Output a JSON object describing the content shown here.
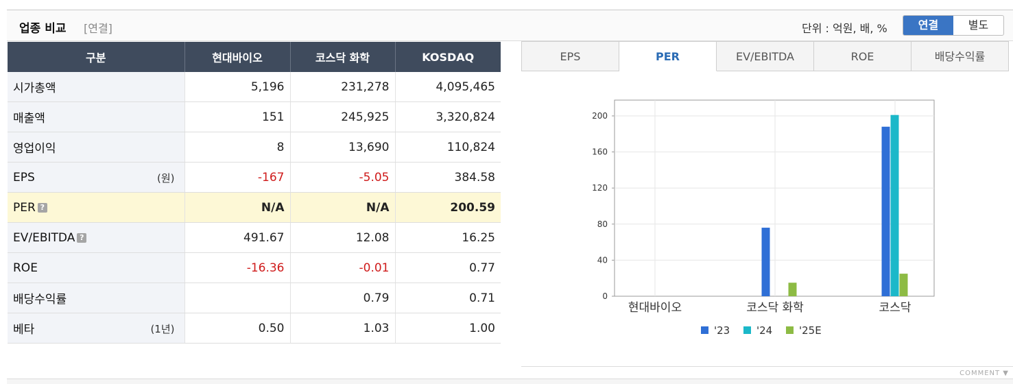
{
  "header": {
    "title": "업종 비교",
    "subtitle": "[연결]",
    "unit": "단위 : 억원, 배, %",
    "toggle": [
      "연결",
      "별도"
    ]
  },
  "table": {
    "headers": [
      "구분",
      "현대바이오",
      "코스닥 화학",
      "KOSDAQ"
    ],
    "rows": [
      {
        "label": "시가총액",
        "unit": "",
        "values": [
          "5,196",
          "231,278",
          "4,095,465"
        ]
      },
      {
        "label": "매출액",
        "unit": "",
        "values": [
          "151",
          "245,925",
          "3,320,824"
        ]
      },
      {
        "label": "영업이익",
        "unit": "",
        "values": [
          "8",
          "13,690",
          "110,824"
        ]
      },
      {
        "label": "EPS",
        "unit": "(원)",
        "values": [
          "-167",
          "-5.05",
          "384.58"
        ]
      },
      {
        "label": "PER",
        "unit": "",
        "values": [
          "N/A",
          "N/A",
          "200.59"
        ]
      },
      {
        "label": "EV/EBITDA",
        "unit": "",
        "values": [
          "491.67",
          "12.08",
          "16.25"
        ]
      },
      {
        "label": "ROE",
        "unit": "",
        "values": [
          "-16.36",
          "-0.01",
          "0.77"
        ]
      },
      {
        "label": "배당수익률",
        "unit": "",
        "values": [
          "",
          "0.79",
          "0.71"
        ]
      },
      {
        "label": "베타",
        "unit": "(1년)",
        "values": [
          "0.50",
          "1.03",
          "1.00"
        ]
      }
    ]
  },
  "tabs": [
    "EPS",
    "PER",
    "EV/EBITDA",
    "ROE",
    "배당수익률"
  ],
  "chart_data": {
    "type": "bar",
    "categories": [
      "현대바이오",
      "코스닥 화학",
      "코스닥"
    ],
    "series": [
      {
        "name": "'23",
        "color": "#2f6fd6",
        "values": [
          0,
          76,
          188
        ]
      },
      {
        "name": "'24",
        "color": "#1bb8c9",
        "values": [
          0,
          0,
          201
        ]
      },
      {
        "name": "'25E",
        "color": "#8dbb44",
        "values": [
          0,
          15,
          25
        ]
      }
    ],
    "ylim": [
      0,
      200
    ],
    "yticks": [
      0,
      40,
      80,
      120,
      160,
      200
    ],
    "grid": true,
    "legend": "bottom"
  },
  "footer": {
    "comment": "COMMENT ▼"
  }
}
